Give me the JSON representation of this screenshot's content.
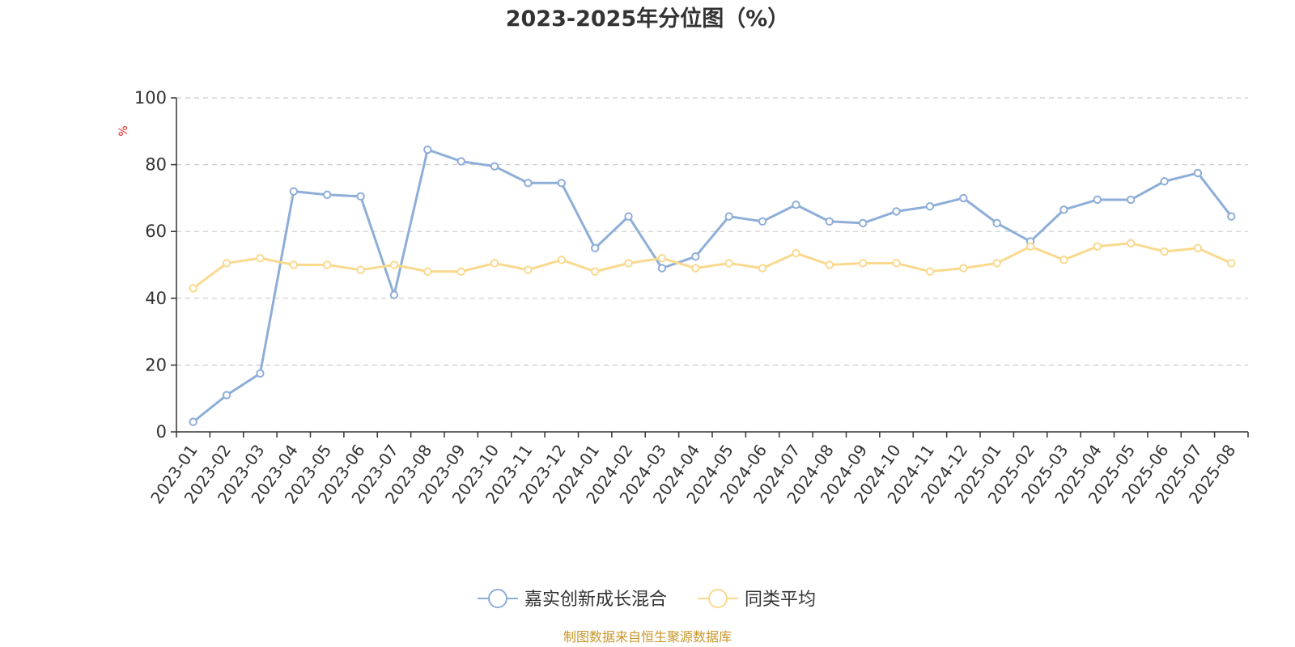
{
  "chart_data": {
    "type": "line",
    "title": "2023-2025年分位图（%）",
    "ylabel": "%",
    "ylim": [
      0,
      100
    ],
    "yticks": [
      0,
      20,
      40,
      60,
      80,
      100
    ],
    "grid": true,
    "legend_position": "bottom",
    "categories": [
      "2023-01",
      "2023-02",
      "2023-03",
      "2023-04",
      "2023-05",
      "2023-06",
      "2023-07",
      "2023-08",
      "2023-09",
      "2023-10",
      "2023-11",
      "2023-12",
      "2024-01",
      "2024-02",
      "2024-03",
      "2024-04",
      "2024-05",
      "2024-06",
      "2024-07",
      "2024-08",
      "2024-09",
      "2024-10",
      "2024-11",
      "2024-12",
      "2025-01",
      "2025-02",
      "2025-03",
      "2025-04",
      "2025-05",
      "2025-06",
      "2025-07",
      "2025-08"
    ],
    "series": [
      {
        "name": "嘉实创新成长混合",
        "color": "#8eaed8",
        "values": [
          3,
          11,
          17.5,
          72,
          71,
          70.5,
          41,
          84.5,
          81,
          79.5,
          74.5,
          74.5,
          55,
          64.5,
          49,
          52.5,
          64.5,
          63,
          68,
          63,
          62.5,
          66,
          67.5,
          70,
          62.5,
          57,
          66.5,
          69.5,
          69.5,
          75,
          77.5,
          64.5
        ]
      },
      {
        "name": "同类平均",
        "color": "#fad98f",
        "values": [
          43,
          50.5,
          52,
          50,
          50,
          48.5,
          50,
          48,
          48,
          50.5,
          48.5,
          51.5,
          48,
          50.5,
          52,
          49,
          50.5,
          49,
          53.5,
          50,
          50.5,
          50.5,
          48,
          49,
          50.5,
          55.5,
          51.5,
          55.5,
          56.5,
          54,
          55,
          50.5
        ]
      }
    ]
  },
  "source_note": "制图数据来自恒生聚源数据库"
}
